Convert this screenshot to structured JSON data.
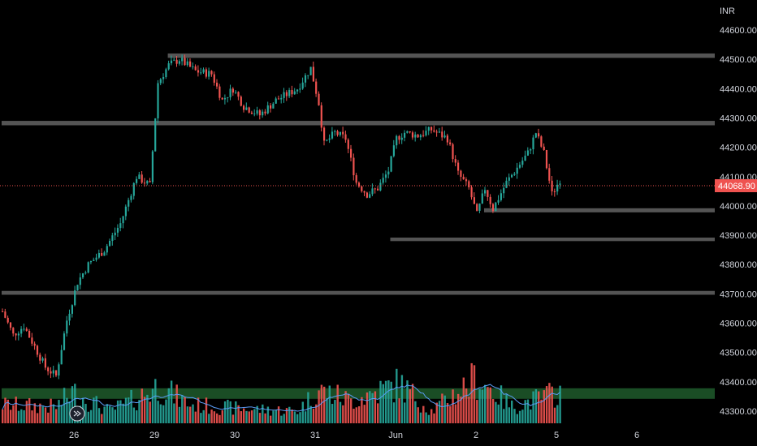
{
  "currency_label": "INR",
  "chart_data": {
    "type": "candlestick",
    "title": "",
    "colors": {
      "background": "#000000",
      "up": "#26a69a",
      "down": "#ef5350",
      "zone": "#5d5d5d",
      "demand_zone": "#1e5b2b",
      "volume_ma": "#5b9cf6",
      "last_price_line": "#ef5350"
    },
    "y_axis": {
      "min": 43270,
      "max": 44640,
      "tick_labels": [
        "44600.00",
        "44500.00",
        "44400.00",
        "44300.00",
        "44200.00",
        "44100.00",
        "44000.00",
        "43900.00",
        "43800.00",
        "43700.00",
        "43600.00",
        "43500.00",
        "43400.00",
        "43300.00"
      ],
      "tick_values": [
        44600,
        44500,
        44400,
        44300,
        44200,
        44100,
        44000,
        43900,
        43800,
        43700,
        43600,
        43500,
        43400,
        43300
      ]
    },
    "x_axis": {
      "tick_labels": [
        "26",
        "29",
        "30",
        "31",
        "Jun",
        "2",
        "5",
        "6"
      ],
      "tick_bar_index": [
        27,
        57,
        87,
        117,
        147,
        177,
        207,
        237
      ]
    },
    "last_price": {
      "value": 44068.9,
      "label": "44068.90"
    },
    "zones": [
      {
        "from_bar": 62,
        "to_bar": 999,
        "top": 44520,
        "bottom": 44505
      },
      {
        "from_bar": 0,
        "to_bar": 999,
        "top": 44290,
        "bottom": 44275
      },
      {
        "from_bar": 180,
        "to_bar": 999,
        "top": 43992,
        "bottom": 43978
      },
      {
        "from_bar": 145,
        "to_bar": 999,
        "top": 43892,
        "bottom": 43880
      },
      {
        "from_bar": 0,
        "to_bar": 999,
        "top": 43710,
        "bottom": 43697
      },
      {
        "from_bar": 0,
        "to_bar": 999,
        "top": 43378,
        "bottom": 43342,
        "kind": "demand"
      }
    ],
    "path_anchors": [
      [
        0,
        43640
      ],
      [
        4,
        43560
      ],
      [
        8,
        43590
      ],
      [
        12,
        43520
      ],
      [
        16,
        43450
      ],
      [
        20,
        43420
      ],
      [
        24,
        43610
      ],
      [
        28,
        43740
      ],
      [
        32,
        43800
      ],
      [
        38,
        43850
      ],
      [
        44,
        43940
      ],
      [
        50,
        44100
      ],
      [
        55,
        44070
      ],
      [
        58,
        44420
      ],
      [
        62,
        44480
      ],
      [
        66,
        44500
      ],
      [
        72,
        44460
      ],
      [
        78,
        44450
      ],
      [
        82,
        44360
      ],
      [
        86,
        44400
      ],
      [
        90,
        44340
      ],
      [
        96,
        44310
      ],
      [
        102,
        44360
      ],
      [
        110,
        44400
      ],
      [
        115,
        44470
      ],
      [
        118,
        44350
      ],
      [
        120,
        44210
      ],
      [
        124,
        44250
      ],
      [
        128,
        44230
      ],
      [
        132,
        44080
      ],
      [
        136,
        44040
      ],
      [
        140,
        44060
      ],
      [
        144,
        44120
      ],
      [
        147,
        44230
      ],
      [
        150,
        44250
      ],
      [
        155,
        44240
      ],
      [
        160,
        44260
      ],
      [
        166,
        44230
      ],
      [
        170,
        44110
      ],
      [
        174,
        44060
      ],
      [
        177,
        43970
      ],
      [
        180,
        44060
      ],
      [
        183,
        43990
      ],
      [
        188,
        44080
      ],
      [
        192,
        44130
      ],
      [
        196,
        44180
      ],
      [
        199,
        44250
      ],
      [
        202,
        44180
      ],
      [
        205,
        44040
      ],
      [
        208,
        44090
      ]
    ],
    "volume_anchors": [
      [
        0,
        0.9
      ],
      [
        20,
        0.8
      ],
      [
        26,
        1.5
      ],
      [
        40,
        0.6
      ],
      [
        50,
        1.2
      ],
      [
        58,
        1.8
      ],
      [
        70,
        0.9
      ],
      [
        90,
        0.7
      ],
      [
        110,
        0.6
      ],
      [
        118,
        1.6
      ],
      [
        130,
        1.1
      ],
      [
        148,
        1.9
      ],
      [
        160,
        0.6
      ],
      [
        177,
        2.2
      ],
      [
        190,
        0.8
      ],
      [
        205,
        1.4
      ],
      [
        208,
        1.6
      ]
    ],
    "num_bars": 209,
    "seed": 7
  }
}
